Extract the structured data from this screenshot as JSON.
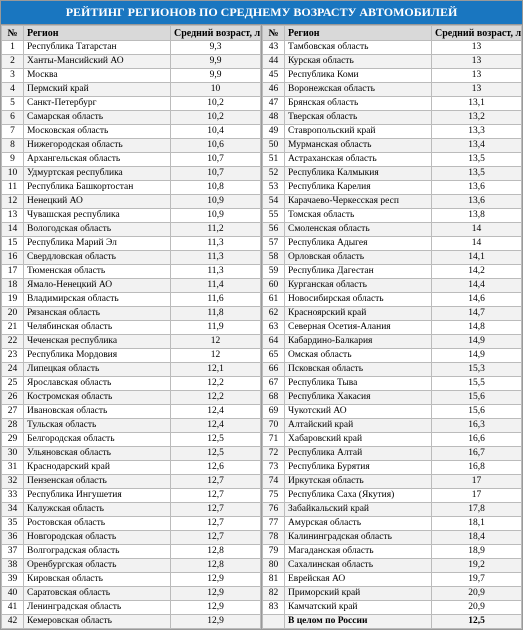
{
  "title": "РЕЙТИНГ РЕГИОНОВ ПО СРЕДНЕМУ ВОЗРАСТУ АВТОМОБИЛЕЙ",
  "headers": {
    "num": "№",
    "region": "Регион",
    "age": "Средний возраст, лет"
  },
  "summary": {
    "label": "В целом по России",
    "value": "12,5"
  },
  "colors": {
    "header_bg": "#1976c0",
    "header_text": "#ffffff",
    "col_header_bg": "#d9d9d9",
    "alt_row_bg": "#f2f2f2",
    "border": "#bbb",
    "background": "#ffffff"
  },
  "rows_left": [
    {
      "n": "1",
      "r": "Республика Татарстан",
      "a": "9,3"
    },
    {
      "n": "2",
      "r": "Ханты-Мансийский АО",
      "a": "9,9"
    },
    {
      "n": "3",
      "r": "Москва",
      "a": "9,9"
    },
    {
      "n": "4",
      "r": "Пермский край",
      "a": "10"
    },
    {
      "n": "5",
      "r": "Санкт-Петербург",
      "a": "10,2"
    },
    {
      "n": "6",
      "r": "Самарская область",
      "a": "10,2"
    },
    {
      "n": "7",
      "r": "Московская область",
      "a": "10,4"
    },
    {
      "n": "8",
      "r": "Нижегородская область",
      "a": "10,6"
    },
    {
      "n": "9",
      "r": "Архангельская область",
      "a": "10,7"
    },
    {
      "n": "10",
      "r": "Удмуртская республика",
      "a": "10,7"
    },
    {
      "n": "11",
      "r": "Республика Башкортостан",
      "a": "10,8"
    },
    {
      "n": "12",
      "r": "Ненецкий АО",
      "a": "10,9"
    },
    {
      "n": "13",
      "r": "Чувашская республика",
      "a": "10,9"
    },
    {
      "n": "14",
      "r": "Вологодская область",
      "a": "11,2"
    },
    {
      "n": "15",
      "r": "Республика Марий Эл",
      "a": "11,3"
    },
    {
      "n": "16",
      "r": "Свердловская область",
      "a": "11,3"
    },
    {
      "n": "17",
      "r": "Тюменская область",
      "a": "11,3"
    },
    {
      "n": "18",
      "r": "Ямало-Ненецкий АО",
      "a": "11,4"
    },
    {
      "n": "19",
      "r": "Владимирская область",
      "a": "11,6"
    },
    {
      "n": "20",
      "r": "Рязанская область",
      "a": "11,8"
    },
    {
      "n": "21",
      "r": "Челябинская область",
      "a": "11,9"
    },
    {
      "n": "22",
      "r": "Чеченская республика",
      "a": "12"
    },
    {
      "n": "23",
      "r": "Республика Мордовия",
      "a": "12"
    },
    {
      "n": "24",
      "r": "Липецкая область",
      "a": "12,1"
    },
    {
      "n": "25",
      "r": "Ярославская область",
      "a": "12,2"
    },
    {
      "n": "26",
      "r": "Костромская область",
      "a": "12,2"
    },
    {
      "n": "27",
      "r": "Ивановская область",
      "a": "12,4"
    },
    {
      "n": "28",
      "r": "Тульская область",
      "a": "12,4"
    },
    {
      "n": "29",
      "r": "Белгородская область",
      "a": "12,5"
    },
    {
      "n": "30",
      "r": "Ульяновская область",
      "a": "12,5"
    },
    {
      "n": "31",
      "r": "Краснодарский край",
      "a": "12,6"
    },
    {
      "n": "32",
      "r": "Пензенская область",
      "a": "12,7"
    },
    {
      "n": "33",
      "r": "Республика Ингушетия",
      "a": "12,7"
    },
    {
      "n": "34",
      "r": "Калужская область",
      "a": "12,7"
    },
    {
      "n": "35",
      "r": "Ростовская область",
      "a": "12,7"
    },
    {
      "n": "36",
      "r": "Новгородская область",
      "a": "12,7"
    },
    {
      "n": "37",
      "r": "Волгоградская область",
      "a": "12,8"
    },
    {
      "n": "38",
      "r": "Оренбургская область",
      "a": "12,8"
    },
    {
      "n": "39",
      "r": "Кировская область",
      "a": "12,9"
    },
    {
      "n": "40",
      "r": "Саратовская область",
      "a": "12,9"
    },
    {
      "n": "41",
      "r": "Ленинградская область",
      "a": "12,9"
    },
    {
      "n": "42",
      "r": "Кемеровская область",
      "a": "12,9"
    }
  ],
  "rows_right": [
    {
      "n": "43",
      "r": "Тамбовская область",
      "a": "13"
    },
    {
      "n": "44",
      "r": "Курская область",
      "a": "13"
    },
    {
      "n": "45",
      "r": "Республика Коми",
      "a": "13"
    },
    {
      "n": "46",
      "r": "Воронежская область",
      "a": "13"
    },
    {
      "n": "47",
      "r": "Брянская область",
      "a": "13,1"
    },
    {
      "n": "48",
      "r": "Тверская область",
      "a": "13,2"
    },
    {
      "n": "49",
      "r": "Ставропольский край",
      "a": "13,3"
    },
    {
      "n": "50",
      "r": "Мурманская область",
      "a": "13,4"
    },
    {
      "n": "51",
      "r": "Астраханская область",
      "a": "13,5"
    },
    {
      "n": "52",
      "r": "Республика Калмыкия",
      "a": "13,5"
    },
    {
      "n": "53",
      "r": "Республика Карелия",
      "a": "13,6"
    },
    {
      "n": "54",
      "r": "Карачаево-Черкесская респ",
      "a": "13,6"
    },
    {
      "n": "55",
      "r": "Томская область",
      "a": "13,8"
    },
    {
      "n": "56",
      "r": "Смоленская область",
      "a": "14"
    },
    {
      "n": "57",
      "r": "Республика Адыгея",
      "a": "14"
    },
    {
      "n": "58",
      "r": "Орловская область",
      "a": "14,1"
    },
    {
      "n": "59",
      "r": "Республика Дагестан",
      "a": "14,2"
    },
    {
      "n": "60",
      "r": "Курганская область",
      "a": "14,4"
    },
    {
      "n": "61",
      "r": "Новосибирская область",
      "a": "14,6"
    },
    {
      "n": "62",
      "r": "Красноярский край",
      "a": "14,7"
    },
    {
      "n": "63",
      "r": "Северная Осетия-Алания",
      "a": "14,8"
    },
    {
      "n": "64",
      "r": "Кабардино-Балкария",
      "a": "14,9"
    },
    {
      "n": "65",
      "r": "Омская область",
      "a": "14,9"
    },
    {
      "n": "66",
      "r": "Псковская область",
      "a": "15,3"
    },
    {
      "n": "67",
      "r": "Республика Тыва",
      "a": "15,5"
    },
    {
      "n": "68",
      "r": "Республика Хакасия",
      "a": "15,6"
    },
    {
      "n": "69",
      "r": "Чукотский АО",
      "a": "15,6"
    },
    {
      "n": "70",
      "r": "Алтайский край",
      "a": "16,3"
    },
    {
      "n": "71",
      "r": "Хабаровский край",
      "a": "16,6"
    },
    {
      "n": "72",
      "r": "Республика Алтай",
      "a": "16,7"
    },
    {
      "n": "73",
      "r": "Республика Бурятия",
      "a": "16,8"
    },
    {
      "n": "74",
      "r": "Иркутская область",
      "a": "17"
    },
    {
      "n": "75",
      "r": "Республика Саха (Якутия)",
      "a": "17"
    },
    {
      "n": "76",
      "r": "Забайкальский край",
      "a": "17,8"
    },
    {
      "n": "77",
      "r": "Амурская область",
      "a": "18,1"
    },
    {
      "n": "78",
      "r": "Калининградская область",
      "a": "18,4"
    },
    {
      "n": "79",
      "r": "Магаданская область",
      "a": "18,9"
    },
    {
      "n": "80",
      "r": "Сахалинская область",
      "a": "19,2"
    },
    {
      "n": "81",
      "r": "Еврейская АО",
      "a": "19,7"
    },
    {
      "n": "82",
      "r": "Приморский край",
      "a": "20,9"
    },
    {
      "n": "83",
      "r": "Камчатский край",
      "a": "20,9"
    }
  ]
}
